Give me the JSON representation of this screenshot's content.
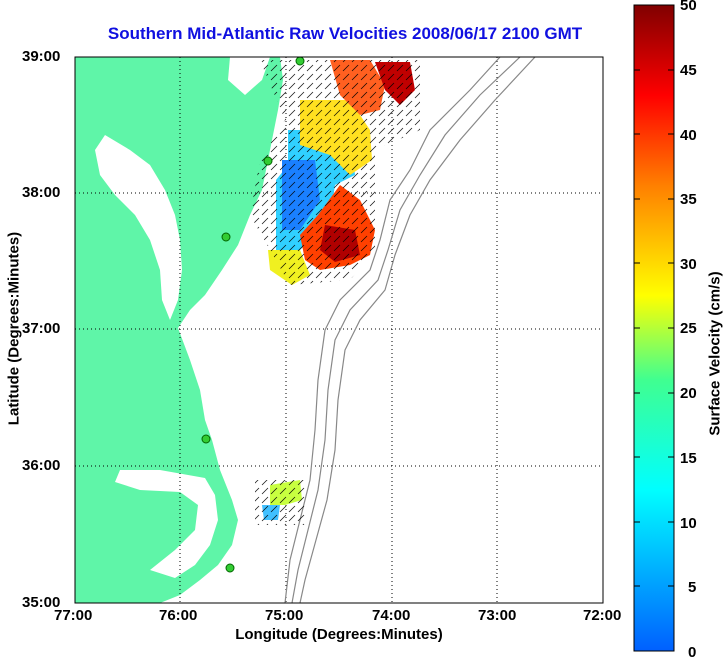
{
  "title": "Southern Mid-Atlantic Raw Velocities 2008/06/17 2100 GMT",
  "x_axis": {
    "label": "Longitude (Degrees:Minutes)",
    "ticks": [
      "77:00",
      "76:00",
      "75:00",
      "74:00",
      "73:00",
      "72:00"
    ]
  },
  "y_axis": {
    "label": "Latitude (Degrees:Minutes)",
    "ticks": [
      "39:00",
      "38:00",
      "37:00",
      "36:00",
      "35:00"
    ]
  },
  "colorbar": {
    "label": "Surface Velocity (cm/s)",
    "ticks": [
      "50",
      "45",
      "40",
      "35",
      "30",
      "25",
      "20",
      "15",
      "10",
      "5",
      "0"
    ],
    "range": [
      0,
      50
    ],
    "colormap": "jet"
  },
  "colors": {
    "land": "#5ff5a8",
    "title": "#1010e0",
    "bathymetry": "#888888",
    "station": "#33cc33"
  },
  "map_extent": {
    "lon": [
      -77,
      -72
    ],
    "lat": [
      35,
      39
    ]
  }
}
